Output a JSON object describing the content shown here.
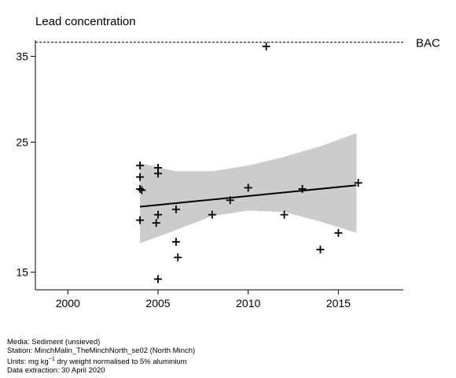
{
  "chart_data": {
    "type": "scatter",
    "title": "Lead concentration",
    "xlabel": "",
    "ylabel": "",
    "xlim": [
      1998.2,
      2018.6
    ],
    "ylim": [
      14.0,
      37.3
    ],
    "y_scale": "log",
    "x_ticks": [
      2000,
      2005,
      2010,
      2015
    ],
    "x_tick_labels": [
      "2000",
      "2005",
      "2010",
      "2015"
    ],
    "y_ticks": [
      15,
      25,
      35
    ],
    "y_tick_labels": [
      "15",
      "25",
      "35"
    ],
    "grid": false,
    "legend": "none",
    "points": [
      {
        "x": 2004.0,
        "y": 22.8
      },
      {
        "x": 2004.0,
        "y": 21.8
      },
      {
        "x": 2004.0,
        "y": 20.8
      },
      {
        "x": 2004.1,
        "y": 20.7
      },
      {
        "x": 2004.0,
        "y": 18.4
      },
      {
        "x": 2005.0,
        "y": 22.6
      },
      {
        "x": 2005.0,
        "y": 22.1
      },
      {
        "x": 2004.9,
        "y": 18.2
      },
      {
        "x": 2005.0,
        "y": 18.8
      },
      {
        "x": 2005.0,
        "y": 14.6
      },
      {
        "x": 2006.0,
        "y": 19.2
      },
      {
        "x": 2006.0,
        "y": 16.9
      },
      {
        "x": 2006.1,
        "y": 15.9
      },
      {
        "x": 2008.0,
        "y": 18.8
      },
      {
        "x": 2009.0,
        "y": 19.9
      },
      {
        "x": 2010.0,
        "y": 20.9
      },
      {
        "x": 2011.0,
        "y": 36.4
      },
      {
        "x": 2012.0,
        "y": 18.8
      },
      {
        "x": 2013.0,
        "y": 20.8
      },
      {
        "x": 2014.0,
        "y": 16.4
      },
      {
        "x": 2015.0,
        "y": 17.5
      },
      {
        "x": 2016.1,
        "y": 21.3
      }
    ],
    "trend_line": [
      {
        "x": 2004.0,
        "y": 19.4
      },
      {
        "x": 2016.0,
        "y": 21.1
      }
    ],
    "confidence_band": {
      "x": [
        2004,
        2006,
        2008,
        2010,
        2012,
        2014,
        2016
      ],
      "upper": [
        23.0,
        22.3,
        22.3,
        22.8,
        23.6,
        24.6,
        25.9
      ],
      "lower": [
        16.8,
        17.7,
        18.7,
        19.1,
        19.0,
        18.3,
        17.5
      ]
    },
    "reference_line": {
      "label": "BAC",
      "y": 37.0
    },
    "colors": {
      "band": "#cccccc",
      "line": "#000000",
      "points": "#000000",
      "reference": "#000000"
    }
  },
  "footer": {
    "media": "Media: Sediment (unsieved)",
    "station": "Station: MinchMalin_TheMinchNorth_se02 (North Minch)",
    "units_prefix": "Units:  mg kg",
    "units_sup": "−1",
    "units_suffix": " dry weight normalised to 5% aluminium",
    "extraction": "Data extraction: 30 April 2020"
  }
}
